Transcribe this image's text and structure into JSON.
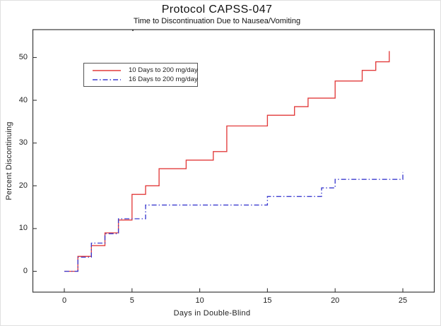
{
  "chart_data": {
    "type": "line",
    "subtype": "step",
    "title": "Protocol CAPSS-047",
    "subtitle": "Time to Discontinuation Due to Nausea/Vomiting",
    "xlabel": "Days in Double-Blind",
    "ylabel": "Percent Discontinuing",
    "x_axis": {
      "ticks": [
        0,
        5,
        10,
        15,
        20,
        25
      ],
      "range": [
        -2.3,
        27.3
      ],
      "grid": false
    },
    "y_axis": {
      "ticks": [
        0,
        10,
        20,
        30,
        40,
        50
      ],
      "range": [
        -4.9,
        56.5
      ],
      "grid": false
    },
    "legend": {
      "position": "upper-left-inside",
      "border": true
    },
    "frame_color": "#3a3a3a",
    "series": [
      {
        "name": "10 Days to 200 mg/day",
        "color": "#e23b3b",
        "style": "solid",
        "points": [
          [
            0,
            0
          ],
          [
            1,
            3.5
          ],
          [
            2,
            6
          ],
          [
            3,
            9
          ],
          [
            4,
            12
          ],
          [
            5,
            18
          ],
          [
            6,
            20
          ],
          [
            7,
            24
          ],
          [
            9,
            26
          ],
          [
            11,
            28
          ],
          [
            12,
            34
          ],
          [
            15,
            36.5
          ],
          [
            17,
            38.5
          ],
          [
            18,
            40.5
          ],
          [
            20,
            44.5
          ],
          [
            22,
            47
          ],
          [
            23,
            49
          ],
          [
            24,
            51.5
          ]
        ]
      },
      {
        "name": "16 Days to 200 mg/day",
        "color": "#3b3bcf",
        "style": "dash-dot",
        "points": [
          [
            0,
            0
          ],
          [
            1,
            3.3
          ],
          [
            2,
            6.6
          ],
          [
            3,
            8.8
          ],
          [
            4,
            12.3
          ],
          [
            6,
            15.5
          ],
          [
            15,
            17.5
          ],
          [
            19,
            19.5
          ],
          [
            20,
            21.5
          ],
          [
            25,
            23.2
          ]
        ]
      }
    ]
  }
}
